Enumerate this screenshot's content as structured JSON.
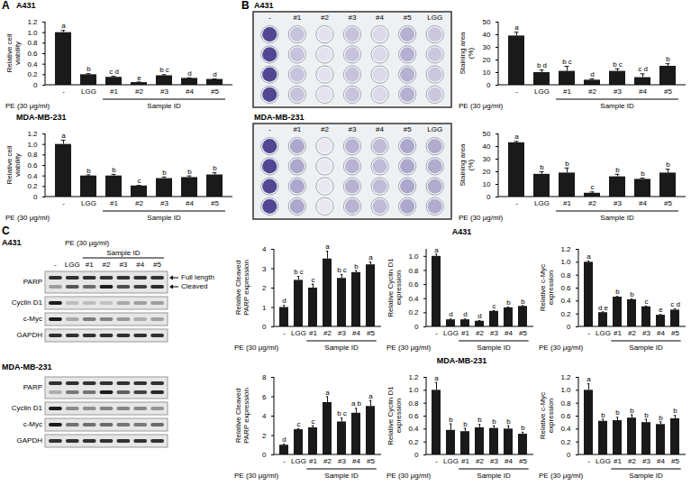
{
  "chart_data": [
    {
      "type": "bar",
      "title": "A431",
      "y_label": "Relative cell viability",
      "x_label": "PE (30 μg/ml)",
      "group_label": "Sample ID",
      "group_range": [
        "#1",
        "#5"
      ],
      "categories": [
        "-",
        "LGG",
        "#1",
        "#2",
        "#3",
        "#4",
        "#5"
      ],
      "values": [
        1.0,
        0.2,
        0.15,
        0.05,
        0.18,
        0.13,
        0.11
      ],
      "errors": [
        0.04,
        0.02,
        0.02,
        0.01,
        0.02,
        0.01,
        0.01
      ],
      "letters": [
        "a",
        "b",
        "c d",
        "e",
        "b c",
        "d",
        "d"
      ],
      "color": "#1a1a1a",
      "ylim": [
        0,
        1.2
      ],
      "yticks": [
        0,
        0.2,
        0.4,
        0.6,
        0.8,
        {
          "value": 1,
          "label": "1.0"
        },
        1.2
      ]
    },
    {
      "type": "bar",
      "title": "MDA-MB-231",
      "y_label": "Relative cell viability",
      "x_label": "PE (30 μg/ml)",
      "group_label": "Sample ID",
      "group_range": [
        "#1",
        "#5"
      ],
      "categories": [
        "-",
        "LGG",
        "#1",
        "#2",
        "#3",
        "#4",
        "#5"
      ],
      "values": [
        1.0,
        0.4,
        0.4,
        0.21,
        0.35,
        0.37,
        0.42
      ],
      "errors": [
        0.08,
        0.02,
        0.03,
        0.01,
        0.03,
        0.03,
        0.04
      ],
      "letters": [
        "a",
        "b",
        "b",
        "c",
        "b",
        "b",
        "b"
      ],
      "color": "#1a1a1a",
      "ylim": [
        0,
        1.2
      ],
      "yticks": [
        0,
        0.2,
        0.4,
        0.6,
        0.8,
        {
          "value": 1,
          "label": "1.0"
        },
        1.2
      ]
    },
    {
      "type": "bar",
      "y_label": "Staining area (%)",
      "x_label": "PE (30 μg/ml)",
      "group_label": "Sample ID",
      "group_range": [
        "#1",
        "#5"
      ],
      "categories": [
        "-",
        "LGG",
        "#1",
        "#2",
        "#3",
        "#4",
        "#5"
      ],
      "values": [
        39,
        10,
        11,
        4,
        11,
        6,
        15
      ],
      "errors": [
        3,
        2,
        4,
        1,
        2,
        3,
        2
      ],
      "letters": [
        "a",
        "b d",
        "b c",
        "d",
        "b c",
        "c d",
        "b"
      ],
      "color": "#1a1a1a",
      "ylim": [
        0,
        50
      ],
      "yticks": [
        0,
        10,
        20,
        30,
        40,
        50
      ]
    },
    {
      "type": "bar",
      "y_label": "Staining area (%)",
      "x_label": "PE (30 μg/ml)",
      "group_label": "Sample ID",
      "group_range": [
        "#1",
        "#5"
      ],
      "categories": [
        "-",
        "LGG",
        "#1",
        "#2",
        "#3",
        "#4",
        "#5"
      ],
      "values": [
        43,
        18,
        19,
        3,
        16,
        14,
        19
      ],
      "errors": [
        1,
        2,
        4,
        1,
        2,
        1,
        3
      ],
      "letters": [
        "a",
        "b",
        "b",
        "c",
        "b",
        "b",
        "b"
      ],
      "color": "#1a1a1a",
      "ylim": [
        0,
        50
      ],
      "yticks": [
        0,
        10,
        20,
        30,
        40,
        50
      ]
    },
    {
      "type": "bar",
      "y_label": "Relative Cleaved PARP expression",
      "x_label": "PE (30 μg/ml)",
      "group_label": "Sample ID",
      "group_range": [
        "#1",
        "#5"
      ],
      "categories": [
        "-",
        "LGG",
        "#1",
        "#2",
        "#3",
        "#4",
        "#5"
      ],
      "values": [
        1.0,
        2.4,
        2.0,
        3.5,
        2.5,
        2.8,
        3.2
      ],
      "errors": [
        0.1,
        0.2,
        0.2,
        0.4,
        0.2,
        0.1,
        0.15
      ],
      "letters": [
        "d",
        "b c",
        "c",
        "a",
        "b c",
        "b",
        "a"
      ],
      "color": "#1a1a1a",
      "ylim": [
        0,
        4
      ],
      "yticks": [
        0,
        1,
        2,
        3,
        4
      ]
    },
    {
      "type": "bar",
      "y_label": "Relative Cyclin D1 expression",
      "x_label": "PE (30 μg/ml)",
      "group_label": "Sample ID",
      "group_range": [
        "#1",
        "#5"
      ],
      "categories": [
        "-",
        "LGG",
        "#1",
        "#2",
        "#3",
        "#4",
        "#5"
      ],
      "values": [
        1.0,
        0.1,
        0.1,
        0.08,
        0.22,
        0.27,
        0.29
      ],
      "errors": [
        0.03,
        0.01,
        0.01,
        0.01,
        0.01,
        0.01,
        0.01
      ],
      "letters": [
        "a",
        "d",
        "d",
        "d",
        "c",
        "b",
        "b"
      ],
      "color": "#1a1a1a",
      "ylim": [
        0,
        1.1
      ],
      "yticks": [
        0,
        0.2,
        0.4,
        0.6,
        0.8,
        {
          "value": 1,
          "label": "1.0"
        }
      ]
    },
    {
      "type": "bar",
      "y_label": "Relative c-Myc expression",
      "x_label": "PE (30 μg/ml)",
      "group_label": "Sample ID",
      "group_range": [
        "#1",
        "#5"
      ],
      "categories": [
        "-",
        "LGG",
        "#1",
        "#2",
        "#3",
        "#4",
        "#5"
      ],
      "values": [
        1.0,
        0.22,
        0.46,
        0.42,
        0.31,
        0.18,
        0.26
      ],
      "errors": [
        0.02,
        0.01,
        0.01,
        0.01,
        0.01,
        0.01,
        0.02
      ],
      "letters": [
        "a",
        "d e",
        "b",
        "b",
        "c",
        "e",
        "c d"
      ],
      "color": "#1a1a1a",
      "ylim": [
        0,
        1.2
      ],
      "yticks": [
        0,
        0.2,
        0.4,
        0.6,
        0.8,
        {
          "value": 1,
          "label": "1.0"
        },
        1.2
      ]
    },
    {
      "type": "bar",
      "y_label": "Relative Cleaved PARP expression",
      "x_label": "PE (30 μg/ml)",
      "group_label": "Sample ID",
      "group_range": [
        "#1",
        "#5"
      ],
      "categories": [
        "-",
        "LGG",
        "#1",
        "#2",
        "#3",
        "#4",
        "#5"
      ],
      "values": [
        1.0,
        2.6,
        2.8,
        5.4,
        3.4,
        4.3,
        5.0
      ],
      "errors": [
        0.1,
        0.1,
        0.2,
        0.6,
        0.4,
        0.5,
        0.6
      ],
      "letters": [
        "d",
        "c",
        "c",
        "a",
        "b c",
        "a b",
        "a"
      ],
      "color": "#1a1a1a",
      "ylim": [
        0,
        8
      ],
      "yticks": [
        0,
        2,
        4,
        6,
        8
      ]
    },
    {
      "type": "bar",
      "y_label": "Relative Cyclin D1 expression",
      "x_label": "PE (30 μg/ml)",
      "group_label": "Sample ID",
      "group_range": [
        "#1",
        "#5"
      ],
      "categories": [
        "-",
        "LGG",
        "#1",
        "#2",
        "#3",
        "#4",
        "#5"
      ],
      "values": [
        1.0,
        0.38,
        0.36,
        0.42,
        0.41,
        0.4,
        0.32
      ],
      "errors": [
        0.12,
        0.1,
        0.05,
        0.05,
        0.04,
        0.05,
        0.03
      ],
      "letters": [
        "a",
        "b",
        "b",
        "b",
        "b",
        "b",
        "b"
      ],
      "color": "#1a1a1a",
      "ylim": [
        0,
        1.2
      ],
      "yticks": [
        0,
        0.2,
        0.4,
        0.6,
        0.8,
        {
          "value": 1,
          "label": "1.0"
        },
        1.2
      ]
    },
    {
      "type": "bar",
      "y_label": "Relative c-Myc expression",
      "x_label": "PE (30 μg/ml)",
      "group_label": "Sample ID",
      "group_range": [
        "#1",
        "#5"
      ],
      "categories": [
        "-",
        "LGG",
        "#1",
        "#2",
        "#3",
        "#4",
        "#5"
      ],
      "values": [
        1.0,
        0.52,
        0.53,
        0.57,
        0.5,
        0.47,
        0.56
      ],
      "errors": [
        0.1,
        0.03,
        0.05,
        0.05,
        0.05,
        0.04,
        0.05
      ],
      "letters": [
        "a",
        "b",
        "b",
        "b",
        "b",
        "b",
        "b"
      ],
      "color": "#1a1a1a",
      "ylim": [
        0,
        1.2
      ],
      "yticks": [
        0,
        0.2,
        0.4,
        0.6,
        0.8,
        {
          "value": 1,
          "label": "1.0"
        },
        1.2
      ]
    }
  ],
  "figure": {
    "panel_letters": [
      "A",
      "B",
      "C"
    ],
    "colony_plates": [
      {
        "title": "A431",
        "column_labels": [
          "-",
          "#1",
          "#2",
          "#3",
          "#4",
          "#5",
          "LGG"
        ],
        "rows": 4
      },
      {
        "title": "MDA-MB-231",
        "column_labels": [
          "-",
          "#1",
          "#2",
          "#3",
          "#4",
          "#5",
          "LGG"
        ],
        "rows": 4
      }
    ],
    "blots": [
      {
        "title": "A431",
        "header": "PE (30 μg/ml)",
        "group_label": "Sample ID",
        "group_range": [
          "#1",
          "#5"
        ],
        "lanes": [
          "-",
          "LGG",
          "#1",
          "#2",
          "#3",
          "#4",
          "#5"
        ],
        "rows": [
          "PARP",
          "Cyclin D1",
          "c-Myc",
          "GAPDH"
        ],
        "arrows": [
          "Full length",
          "Cleaved"
        ]
      },
      {
        "title": "MDA-MB-231",
        "rows": [
          "PARP",
          "Cyclin D1",
          "c-Myc",
          "GAPDH"
        ]
      }
    ],
    "row_titles": [
      "A431",
      "MDA-MB-231"
    ]
  }
}
